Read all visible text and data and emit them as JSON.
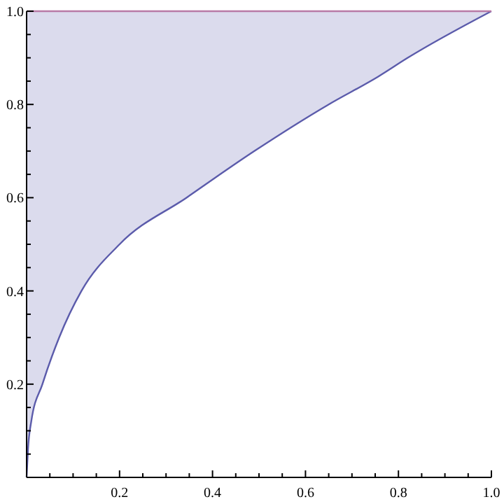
{
  "chart_data": {
    "type": "line",
    "x": [
      0,
      0.003,
      0.01,
      0.034,
      0.07,
      0.118,
      0.2,
      0.344,
      0.49,
      0.65,
      0.757,
      0.82,
      1
    ],
    "series": [
      {
        "color": "#5b5bab",
        "values": [
          0,
          0.06,
          0.12,
          0.2,
          0.3,
          0.4,
          0.5,
          0.6,
          0.7,
          0.8,
          0.86,
          0.9,
          1
        ],
        "lower": [
          0,
          0.06,
          0.12,
          0.2,
          0.3,
          0.4,
          0.5,
          0.6,
          0.7,
          0.8,
          0.86,
          0.9,
          1
        ],
        "upper": [
          1,
          1,
          1,
          1,
          1,
          1,
          1,
          1,
          1,
          1,
          1,
          1,
          1
        ]
      },
      {
        "color": "#b87aa6",
        "values": [
          1,
          1,
          1,
          1,
          1,
          1,
          1,
          1,
          1,
          1,
          1,
          1,
          1
        ]
      }
    ],
    "xlim": [
      0,
      1
    ],
    "ylim": [
      0,
      1
    ],
    "xticks": [
      {
        "value": 0.05,
        "label": null
      },
      {
        "value": 0.1,
        "label": null
      },
      {
        "value": 0.15,
        "label": null
      },
      0.2,
      {
        "value": 0.25,
        "label": null
      },
      {
        "value": 0.3,
        "label": null
      },
      {
        "value": 0.35,
        "label": null
      },
      0.4,
      {
        "value": 0.45,
        "label": null
      },
      {
        "value": 0.5,
        "label": null
      },
      {
        "value": 0.55,
        "label": null
      },
      0.6,
      {
        "value": 0.65,
        "label": null
      },
      {
        "value": 0.7,
        "label": null
      },
      {
        "value": 0.75,
        "label": null
      },
      0.8,
      {
        "value": 0.85,
        "label": null
      },
      {
        "value": 0.9,
        "label": null
      },
      {
        "value": 0.95,
        "label": null
      },
      {
        "value": 1,
        "label": "1.0"
      }
    ],
    "yticks": [
      {
        "value": 0.05,
        "label": null
      },
      {
        "value": 0.1,
        "label": null
      },
      {
        "value": 0.15,
        "label": null
      },
      0.2,
      {
        "value": 0.25,
        "label": null
      },
      {
        "value": 0.3,
        "label": null
      },
      {
        "value": 0.35,
        "label": null
      },
      0.4,
      {
        "value": 0.45,
        "label": null
      },
      {
        "value": 0.5,
        "label": null
      },
      {
        "value": 0.55,
        "label": null
      },
      0.6,
      {
        "value": 0.65,
        "label": null
      },
      {
        "value": 0.7,
        "label": null
      },
      {
        "value": 0.75,
        "label": null
      },
      0.8,
      {
        "value": 0.85,
        "label": null
      },
      {
        "value": 0.9,
        "label": null
      },
      {
        "value": 0.95,
        "label": null
      },
      {
        "value": 1,
        "label": "1.0"
      }
    ],
    "grid": false,
    "marker": "none",
    "line_style": "solid"
  }
}
